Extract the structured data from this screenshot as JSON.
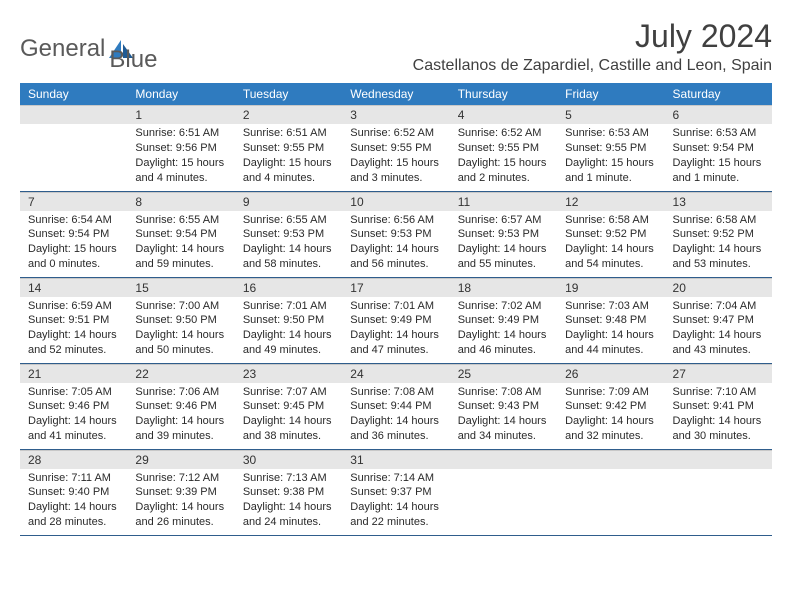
{
  "brand": {
    "part1": "General",
    "part2": "Blue"
  },
  "title": "July 2024",
  "location": "Castellanos de Zapardiel, Castille and Leon, Spain",
  "colors": {
    "header_bg": "#2f7bbf",
    "header_text": "#ffffff",
    "daynum_bg": "#e6e6e6",
    "border": "#2f5d8c",
    "text": "#2a2a2a",
    "title_color": "#404040"
  },
  "weekdays": [
    "Sunday",
    "Monday",
    "Tuesday",
    "Wednesday",
    "Thursday",
    "Friday",
    "Saturday"
  ],
  "start_offset": 1,
  "days": [
    {
      "n": 1,
      "sunrise": "6:51 AM",
      "sunset": "9:56 PM",
      "daylight": "15 hours and 4 minutes."
    },
    {
      "n": 2,
      "sunrise": "6:51 AM",
      "sunset": "9:55 PM",
      "daylight": "15 hours and 4 minutes."
    },
    {
      "n": 3,
      "sunrise": "6:52 AM",
      "sunset": "9:55 PM",
      "daylight": "15 hours and 3 minutes."
    },
    {
      "n": 4,
      "sunrise": "6:52 AM",
      "sunset": "9:55 PM",
      "daylight": "15 hours and 2 minutes."
    },
    {
      "n": 5,
      "sunrise": "6:53 AM",
      "sunset": "9:55 PM",
      "daylight": "15 hours and 1 minute."
    },
    {
      "n": 6,
      "sunrise": "6:53 AM",
      "sunset": "9:54 PM",
      "daylight": "15 hours and 1 minute."
    },
    {
      "n": 7,
      "sunrise": "6:54 AM",
      "sunset": "9:54 PM",
      "daylight": "15 hours and 0 minutes."
    },
    {
      "n": 8,
      "sunrise": "6:55 AM",
      "sunset": "9:54 PM",
      "daylight": "14 hours and 59 minutes."
    },
    {
      "n": 9,
      "sunrise": "6:55 AM",
      "sunset": "9:53 PM",
      "daylight": "14 hours and 58 minutes."
    },
    {
      "n": 10,
      "sunrise": "6:56 AM",
      "sunset": "9:53 PM",
      "daylight": "14 hours and 56 minutes."
    },
    {
      "n": 11,
      "sunrise": "6:57 AM",
      "sunset": "9:53 PM",
      "daylight": "14 hours and 55 minutes."
    },
    {
      "n": 12,
      "sunrise": "6:58 AM",
      "sunset": "9:52 PM",
      "daylight": "14 hours and 54 minutes."
    },
    {
      "n": 13,
      "sunrise": "6:58 AM",
      "sunset": "9:52 PM",
      "daylight": "14 hours and 53 minutes."
    },
    {
      "n": 14,
      "sunrise": "6:59 AM",
      "sunset": "9:51 PM",
      "daylight": "14 hours and 52 minutes."
    },
    {
      "n": 15,
      "sunrise": "7:00 AM",
      "sunset": "9:50 PM",
      "daylight": "14 hours and 50 minutes."
    },
    {
      "n": 16,
      "sunrise": "7:01 AM",
      "sunset": "9:50 PM",
      "daylight": "14 hours and 49 minutes."
    },
    {
      "n": 17,
      "sunrise": "7:01 AM",
      "sunset": "9:49 PM",
      "daylight": "14 hours and 47 minutes."
    },
    {
      "n": 18,
      "sunrise": "7:02 AM",
      "sunset": "9:49 PM",
      "daylight": "14 hours and 46 minutes."
    },
    {
      "n": 19,
      "sunrise": "7:03 AM",
      "sunset": "9:48 PM",
      "daylight": "14 hours and 44 minutes."
    },
    {
      "n": 20,
      "sunrise": "7:04 AM",
      "sunset": "9:47 PM",
      "daylight": "14 hours and 43 minutes."
    },
    {
      "n": 21,
      "sunrise": "7:05 AM",
      "sunset": "9:46 PM",
      "daylight": "14 hours and 41 minutes."
    },
    {
      "n": 22,
      "sunrise": "7:06 AM",
      "sunset": "9:46 PM",
      "daylight": "14 hours and 39 minutes."
    },
    {
      "n": 23,
      "sunrise": "7:07 AM",
      "sunset": "9:45 PM",
      "daylight": "14 hours and 38 minutes."
    },
    {
      "n": 24,
      "sunrise": "7:08 AM",
      "sunset": "9:44 PM",
      "daylight": "14 hours and 36 minutes."
    },
    {
      "n": 25,
      "sunrise": "7:08 AM",
      "sunset": "9:43 PM",
      "daylight": "14 hours and 34 minutes."
    },
    {
      "n": 26,
      "sunrise": "7:09 AM",
      "sunset": "9:42 PM",
      "daylight": "14 hours and 32 minutes."
    },
    {
      "n": 27,
      "sunrise": "7:10 AM",
      "sunset": "9:41 PM",
      "daylight": "14 hours and 30 minutes."
    },
    {
      "n": 28,
      "sunrise": "7:11 AM",
      "sunset": "9:40 PM",
      "daylight": "14 hours and 28 minutes."
    },
    {
      "n": 29,
      "sunrise": "7:12 AM",
      "sunset": "9:39 PM",
      "daylight": "14 hours and 26 minutes."
    },
    {
      "n": 30,
      "sunrise": "7:13 AM",
      "sunset": "9:38 PM",
      "daylight": "14 hours and 24 minutes."
    },
    {
      "n": 31,
      "sunrise": "7:14 AM",
      "sunset": "9:37 PM",
      "daylight": "14 hours and 22 minutes."
    }
  ],
  "labels": {
    "sunrise": "Sunrise:",
    "sunset": "Sunset:",
    "daylight": "Daylight:"
  }
}
